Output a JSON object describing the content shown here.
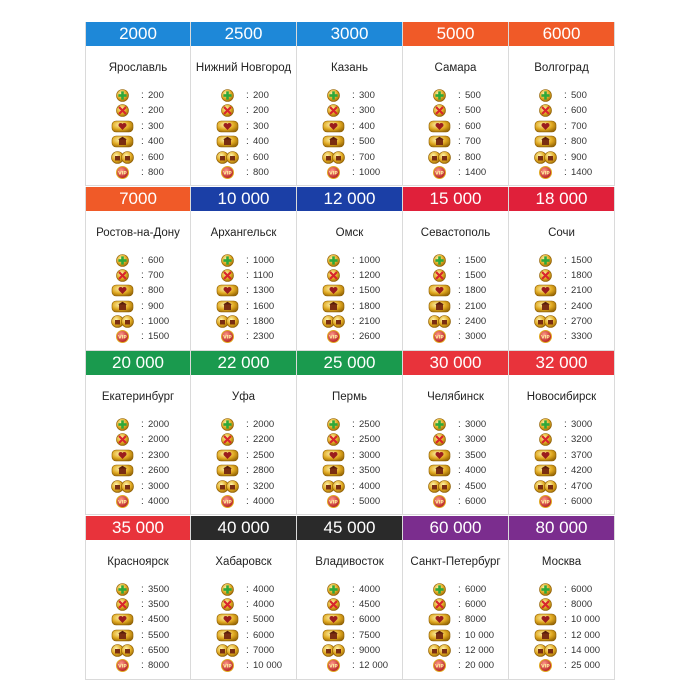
{
  "colors": {
    "blue": "#1e88d8",
    "orange": "#f05a28",
    "red": "#e8333b",
    "navy": "#1b3fa6",
    "crimson": "#e0203a",
    "green": "#1a9a4e",
    "black": "#2a2a2a",
    "purple": "#7b2d8e"
  },
  "icons": [
    "plus-icon",
    "cross-icon",
    "heart-house-icon",
    "one-house-icon",
    "two-houses-icon",
    "vip-icon"
  ],
  "cards": [
    {
      "price": "2000",
      "city": "Ярославль",
      "color": "blue",
      "rents": [
        "200",
        "200",
        "300",
        "400",
        "600",
        "800"
      ]
    },
    {
      "price": "2500",
      "city": "Нижний Новгород",
      "color": "blue",
      "rents": [
        "200",
        "200",
        "300",
        "400",
        "600",
        "800"
      ]
    },
    {
      "price": "3000",
      "city": "Казань",
      "color": "blue",
      "rents": [
        "300",
        "300",
        "400",
        "500",
        "700",
        "1000"
      ]
    },
    {
      "price": "5000",
      "city": "Самара",
      "color": "orange",
      "rents": [
        "500",
        "500",
        "600",
        "700",
        "800",
        "1400"
      ]
    },
    {
      "price": "6000",
      "city": "Волгоград",
      "color": "orange",
      "rents": [
        "500",
        "600",
        "700",
        "800",
        "900",
        "1400"
      ]
    },
    {
      "price": "7000",
      "city": "Ростов-на-Дону",
      "color": "orange",
      "rents": [
        "600",
        "700",
        "800",
        "900",
        "1000",
        "1500"
      ]
    },
    {
      "price": "10 000",
      "city": "Архангельск",
      "color": "navy",
      "rents": [
        "1000",
        "1100",
        "1300",
        "1600",
        "1800",
        "2300"
      ]
    },
    {
      "price": "12 000",
      "city": "Омск",
      "color": "navy",
      "rents": [
        "1000",
        "1200",
        "1500",
        "1800",
        "2100",
        "2600"
      ]
    },
    {
      "price": "15 000",
      "city": "Севастополь",
      "color": "crimson",
      "rents": [
        "1500",
        "1500",
        "1800",
        "2100",
        "2400",
        "3000"
      ]
    },
    {
      "price": "18 000",
      "city": "Сочи",
      "color": "crimson",
      "rents": [
        "1500",
        "1800",
        "2100",
        "2400",
        "2700",
        "3300"
      ]
    },
    {
      "price": "20 000",
      "city": "Екатеринбург",
      "color": "green",
      "rents": [
        "2000",
        "2000",
        "2300",
        "2600",
        "3000",
        "4000"
      ]
    },
    {
      "price": "22 000",
      "city": "Уфа",
      "color": "green",
      "rents": [
        "2000",
        "2200",
        "2500",
        "2800",
        "3200",
        "4000"
      ]
    },
    {
      "price": "25 000",
      "city": "Пермь",
      "color": "green",
      "rents": [
        "2500",
        "2500",
        "3000",
        "3500",
        "4000",
        "5000"
      ]
    },
    {
      "price": "30 000",
      "city": "Челябинск",
      "color": "red",
      "rents": [
        "3000",
        "3000",
        "3500",
        "4000",
        "4500",
        "6000"
      ]
    },
    {
      "price": "32 000",
      "city": "Новосибирск",
      "color": "red",
      "rents": [
        "3000",
        "3200",
        "3700",
        "4200",
        "4700",
        "6000"
      ]
    },
    {
      "price": "35 000",
      "city": "Красноярск",
      "color": "red",
      "rents": [
        "3500",
        "3500",
        "4500",
        "5500",
        "6500",
        "8000"
      ]
    },
    {
      "price": "40 000",
      "city": "Хабаровск",
      "color": "black",
      "rents": [
        "4000",
        "4000",
        "5000",
        "6000",
        "7000",
        "10 000"
      ]
    },
    {
      "price": "45 000",
      "city": "Владивосток",
      "color": "black",
      "rents": [
        "4000",
        "4500",
        "6000",
        "7500",
        "9000",
        "12 000"
      ]
    },
    {
      "price": "60 000",
      "city": "Санкт-Петербург",
      "color": "purple",
      "rents": [
        "6000",
        "6000",
        "8000",
        "10 000",
        "12 000",
        "20 000"
      ]
    },
    {
      "price": "80 000",
      "city": "Москва",
      "color": "purple",
      "rents": [
        "6000",
        "8000",
        "10 000",
        "12 000",
        "14 000",
        "25 000"
      ]
    }
  ]
}
